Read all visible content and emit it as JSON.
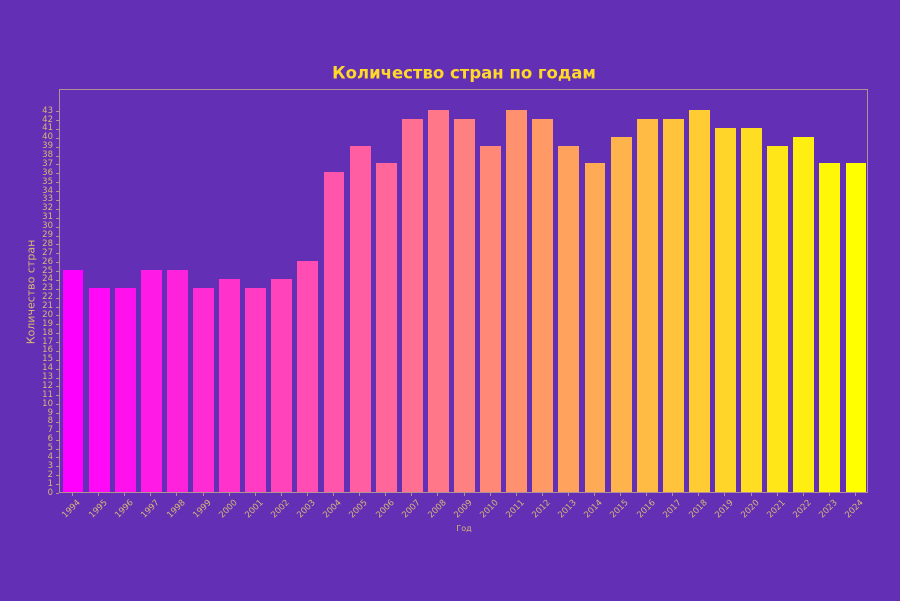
{
  "chart_data": {
    "type": "bar",
    "title": "Количество стран по годам",
    "xlabel": "Год",
    "ylabel": "Количество стран",
    "categories": [
      "1994",
      "1995",
      "1996",
      "1997",
      "1998",
      "1999",
      "2000",
      "2001",
      "2002",
      "2003",
      "2004",
      "2005",
      "2006",
      "2007",
      "2008",
      "2009",
      "2010",
      "2011",
      "2012",
      "2013",
      "2014",
      "2015",
      "2016",
      "2017",
      "2018",
      "2019",
      "2020",
      "2021",
      "2022",
      "2023",
      "2024"
    ],
    "values": [
      25,
      23,
      23,
      25,
      25,
      23,
      24,
      23,
      24,
      26,
      36,
      39,
      37,
      42,
      43,
      42,
      39,
      43,
      42,
      39,
      37,
      40,
      42,
      42,
      43,
      41,
      41,
      39,
      40,
      37,
      37
    ],
    "ylim": [
      0,
      45.5
    ],
    "yticks": {
      "min": 0,
      "max": 43,
      "step": 1
    },
    "grid": false,
    "legend": "none",
    "colormap": "spring",
    "colors": {
      "background": "#6330b5",
      "bar_start": "#ff00ff",
      "bar_end": "#ffff00",
      "title_text": "#ffd829",
      "tick_text": "#d9b873",
      "spine": "#dec482"
    }
  }
}
